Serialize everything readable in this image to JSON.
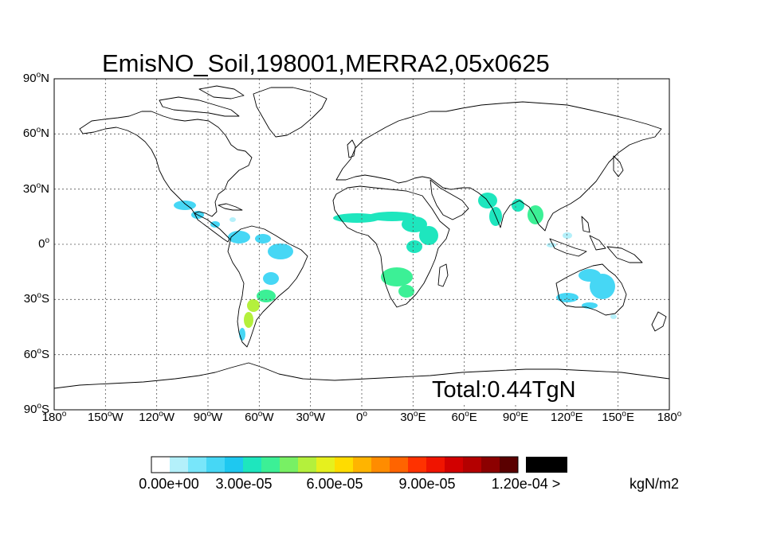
{
  "title": "EmisNO_Soil,198001,MERRA2,05x0625",
  "total": "Total:0.44TgN",
  "lat_labels": [
    {
      "deg": "90",
      "hemi": "N",
      "lat": 90
    },
    {
      "deg": "60",
      "hemi": "N",
      "lat": 60
    },
    {
      "deg": "30",
      "hemi": "N",
      "lat": 30
    },
    {
      "deg": "0",
      "hemi": "",
      "lat": 0
    },
    {
      "deg": "30",
      "hemi": "S",
      "lat": -30
    },
    {
      "deg": "60",
      "hemi": "S",
      "lat": -60
    },
    {
      "deg": "90",
      "hemi": "S",
      "lat": -90
    }
  ],
  "lon_labels": [
    {
      "deg": "180",
      "hemi": "",
      "lon": -180
    },
    {
      "deg": "150",
      "hemi": "W",
      "lon": -150
    },
    {
      "deg": "120",
      "hemi": "W",
      "lon": -120
    },
    {
      "deg": "90",
      "hemi": "W",
      "lon": -90
    },
    {
      "deg": "60",
      "hemi": "W",
      "lon": -60
    },
    {
      "deg": "30",
      "hemi": "W",
      "lon": -30
    },
    {
      "deg": "0",
      "hemi": "",
      "lon": 0
    },
    {
      "deg": "30",
      "hemi": "E",
      "lon": 30
    },
    {
      "deg": "60",
      "hemi": "E",
      "lon": 60
    },
    {
      "deg": "90",
      "hemi": "E",
      "lon": 90
    },
    {
      "deg": "120",
      "hemi": "E",
      "lon": 120
    },
    {
      "deg": "150",
      "hemi": "E",
      "lon": 150
    },
    {
      "deg": "180",
      "hemi": "",
      "lon": 180
    }
  ],
  "colorbar": {
    "colors": [
      "#ffffff",
      "#b4f0fa",
      "#78e6fa",
      "#46d7f5",
      "#1ec8f0",
      "#1ee6be",
      "#3cf096",
      "#78f064",
      "#b4f03c",
      "#e6f01e",
      "#ffdc00",
      "#ffb400",
      "#ff8c00",
      "#ff6400",
      "#ff3200",
      "#f01400",
      "#d20000",
      "#b40000",
      "#8c0000",
      "#5a0000"
    ],
    "overflow_color": "#000000",
    "labels": [
      "0.00e+00",
      "3.00e-05",
      "6.00e-05",
      "9.00e-05",
      "1.20e-04 >"
    ],
    "range": [
      0,
      0.00012
    ],
    "unit": "kgN/m2"
  },
  "map_data": {
    "variable": "EmisNO_Soil",
    "lon_range": [
      -180,
      180
    ],
    "lat_range": [
      -90,
      90
    ],
    "grid": true,
    "emission_regions": [
      {
        "region": "Mexico & Central America",
        "level": 2e-05
      },
      {
        "region": "Caribbean",
        "level": 1e-05
      },
      {
        "region": "Northern South America",
        "level": 2e-05
      },
      {
        "region": "Eastern Brazil",
        "level": 2e-05
      },
      {
        "region": "Southern Brazil / Paraguay / Uruguay",
        "level": 4e-05
      },
      {
        "region": "Northern Argentina",
        "level": 5e-05
      },
      {
        "region": "Patagonia",
        "level": 2e-05
      },
      {
        "region": "Sahel",
        "level": 3e-05
      },
      {
        "region": "East Africa",
        "level": 3e-05
      },
      {
        "region": "Southern Africa",
        "level": 4e-05
      },
      {
        "region": "India",
        "level": 3e-05
      },
      {
        "region": "Bangladesh / Myanmar",
        "level": 3e-05
      },
      {
        "region": "Indochina",
        "level": 4e-05
      },
      {
        "region": "Southeast Asia islands",
        "level": 1e-05
      },
      {
        "region": "Australia",
        "level": 2e-05
      },
      {
        "region": "Tasmania",
        "level": 1e-05
      }
    ]
  }
}
